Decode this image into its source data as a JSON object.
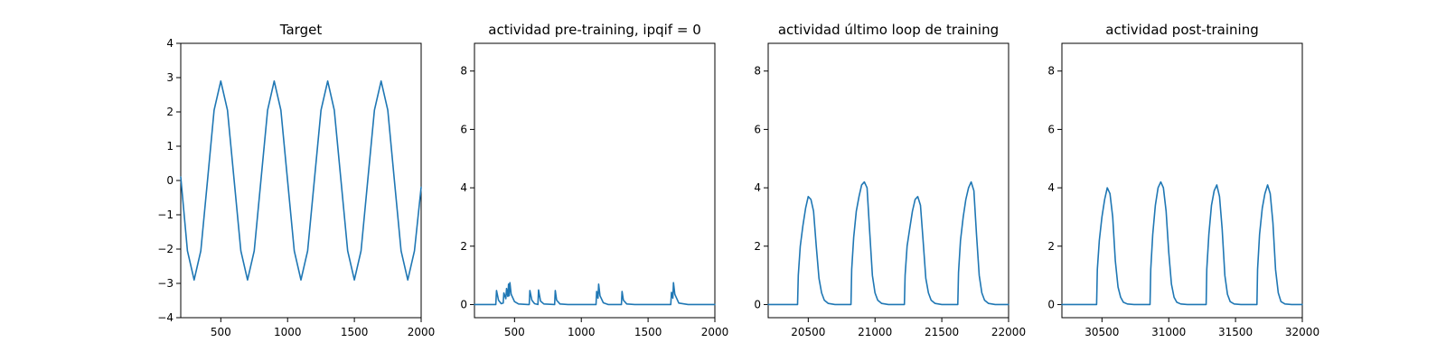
{
  "chart_data": [
    {
      "type": "line",
      "title": "Target",
      "xlabel": "",
      "ylabel": "",
      "xlim": [
        200,
        2000
      ],
      "ylim": [
        -4,
        4
      ],
      "xticks": [
        500,
        1000,
        1500,
        2000
      ],
      "yticks": [
        -4,
        -3,
        -2,
        -1,
        0,
        1,
        2,
        3,
        4
      ],
      "grid": false,
      "color": "#1f77b4",
      "series": [
        {
          "x": [
            200,
            250,
            300,
            350,
            400,
            450,
            500,
            550,
            600,
            650,
            700,
            750,
            800,
            850,
            900,
            950,
            1000,
            1050,
            1100,
            1150,
            1200,
            1250,
            1300,
            1350,
            1400,
            1450,
            1500,
            1550,
            1600,
            1650,
            1700,
            1750,
            1800,
            1850,
            1900,
            1950,
            2000
          ],
          "y": [
            0.1,
            -2.05,
            -2.9,
            -2.05,
            0,
            2.05,
            2.9,
            2.05,
            0,
            -2.05,
            -2.9,
            -2.05,
            0,
            2.05,
            2.9,
            2.05,
            0,
            -2.05,
            -2.9,
            -2.05,
            0,
            2.05,
            2.9,
            2.05,
            0,
            -2.05,
            -2.9,
            -2.05,
            0,
            2.05,
            2.9,
            2.05,
            0,
            -2.05,
            -2.9,
            -2.05,
            -0.2
          ]
        }
      ]
    },
    {
      "type": "line",
      "title": "actividad pre-training, ipqif = 0",
      "xlabel": "",
      "ylabel": "",
      "xlim": [
        200,
        2000
      ],
      "ylim": [
        -0.45,
        8.95
      ],
      "xticks": [
        500,
        1000,
        1500,
        2000
      ],
      "yticks": [
        0,
        2,
        4,
        6,
        8
      ],
      "grid": false,
      "color": "#1f77b4",
      "series": [
        {
          "x": [
            200,
            360,
            365,
            380,
            400,
            415,
            420,
            435,
            440,
            450,
            455,
            460,
            465,
            475,
            500,
            530,
            600,
            610,
            615,
            630,
            650,
            675,
            680,
            695,
            720,
            800,
            805,
            815,
            840,
            900,
            1110,
            1115,
            1125,
            1130,
            1140,
            1165,
            1200,
            1300,
            1305,
            1315,
            1340,
            1400,
            1670,
            1675,
            1685,
            1690,
            1700,
            1730,
            1800,
            2000
          ],
          "y": [
            0,
            0,
            0.48,
            0.15,
            0.03,
            0.05,
            0.4,
            0.2,
            0.55,
            0.28,
            0.7,
            0.3,
            0.75,
            0.35,
            0.1,
            0.02,
            0,
            0,
            0.48,
            0.15,
            0.03,
            0,
            0.5,
            0.12,
            0.02,
            0,
            0.48,
            0.15,
            0.02,
            0,
            0,
            0.45,
            0.22,
            0.7,
            0.3,
            0.06,
            0,
            0,
            0.45,
            0.15,
            0.02,
            0,
            0,
            0.42,
            0.22,
            0.75,
            0.35,
            0.05,
            0,
            0
          ]
        }
      ]
    },
    {
      "type": "line",
      "title": "actividad último loop de training",
      "xlabel": "",
      "ylabel": "",
      "xlim": [
        20200,
        22000
      ],
      "ylim": [
        -0.45,
        8.95
      ],
      "xticks": [
        20500,
        21000,
        21500,
        22000
      ],
      "yticks": [
        0,
        2,
        4,
        6,
        8
      ],
      "grid": false,
      "color": "#1f77b4",
      "series": [
        {
          "x": [
            20200,
            20420,
            20425,
            20440,
            20460,
            20480,
            20500,
            20520,
            20540,
            20560,
            20580,
            20600,
            20620,
            20650,
            20700,
            20820,
            20825,
            20840,
            20860,
            20880,
            20900,
            20920,
            20940,
            20960,
            20980,
            21000,
            21020,
            21050,
            21100,
            21220,
            21225,
            21240,
            21260,
            21280,
            21300,
            21320,
            21340,
            21360,
            21380,
            21400,
            21420,
            21450,
            21500,
            21620,
            21625,
            21640,
            21660,
            21680,
            21700,
            21720,
            21740,
            21760,
            21780,
            21800,
            21820,
            21850,
            21900,
            22000
          ],
          "y": [
            0,
            0,
            1.0,
            2.0,
            2.7,
            3.3,
            3.7,
            3.6,
            3.2,
            2.0,
            0.9,
            0.4,
            0.15,
            0.04,
            0,
            0,
            1.2,
            2.3,
            3.2,
            3.7,
            4.1,
            4.2,
            4.0,
            2.5,
            1.0,
            0.4,
            0.15,
            0.04,
            0,
            0,
            1.0,
            2.0,
            2.6,
            3.2,
            3.6,
            3.7,
            3.4,
            2.2,
            0.9,
            0.4,
            0.15,
            0.04,
            0,
            0,
            1.1,
            2.2,
            3.0,
            3.6,
            4.0,
            4.2,
            3.9,
            2.4,
            1.0,
            0.4,
            0.15,
            0.04,
            0,
            0
          ]
        }
      ]
    },
    {
      "type": "line",
      "title": "actividad post-training",
      "xlabel": "",
      "ylabel": "",
      "xlim": [
        30200,
        32000
      ],
      "ylim": [
        -0.45,
        8.95
      ],
      "xticks": [
        30500,
        31000,
        31500,
        32000
      ],
      "yticks": [
        0,
        2,
        4,
        6,
        8
      ],
      "grid": false,
      "color": "#1f77b4",
      "series": [
        {
          "x": [
            30200,
            30460,
            30465,
            30480,
            30500,
            30520,
            30540,
            30560,
            30580,
            30600,
            30620,
            30640,
            30660,
            30690,
            30740,
            30860,
            30865,
            30880,
            30900,
            30920,
            30940,
            30960,
            30980,
            31000,
            31020,
            31040,
            31060,
            31090,
            31140,
            31280,
            31285,
            31300,
            31320,
            31340,
            31360,
            31380,
            31400,
            31420,
            31440,
            31460,
            31490,
            31540,
            31660,
            31665,
            31680,
            31700,
            31720,
            31740,
            31760,
            31780,
            31800,
            31820,
            31840,
            31870,
            31920,
            32000
          ],
          "y": [
            0,
            0,
            1.2,
            2.2,
            3.0,
            3.6,
            4.0,
            3.8,
            3.0,
            1.5,
            0.6,
            0.25,
            0.08,
            0.02,
            0,
            0,
            1.2,
            2.4,
            3.4,
            4.0,
            4.2,
            4.0,
            3.2,
            1.8,
            0.7,
            0.25,
            0.08,
            0.02,
            0,
            0,
            1.2,
            2.4,
            3.4,
            3.9,
            4.1,
            3.7,
            2.6,
            1.0,
            0.35,
            0.1,
            0.02,
            0,
            0,
            1.2,
            2.4,
            3.3,
            3.8,
            4.1,
            3.8,
            2.8,
            1.2,
            0.4,
            0.1,
            0.02,
            0,
            0
          ]
        }
      ]
    }
  ]
}
